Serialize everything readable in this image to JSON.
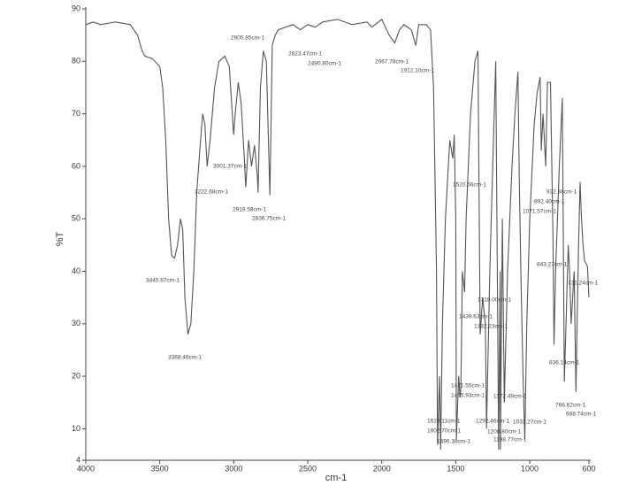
{
  "chart_data": {
    "type": "line",
    "xlabel": "cm-1",
    "ylabel": "%T",
    "xlim": [
      4000,
      600
    ],
    "xticks": [
      4000,
      3500,
      3000,
      2500,
      2000,
      1500,
      1000,
      600
    ],
    "ylim": [
      4,
      90
    ],
    "yticks": [
      4,
      10,
      20,
      30,
      40,
      50,
      60,
      70,
      80,
      90
    ],
    "color": "#555555",
    "x": [
      4000,
      3950,
      3900,
      3800,
      3700,
      3650,
      3620,
      3600,
      3550,
      3500,
      3480,
      3460,
      3440,
      3420,
      3400,
      3380,
      3360,
      3345,
      3330,
      3310,
      3290,
      3270,
      3250,
      3230,
      3210,
      3195,
      3180,
      3160,
      3130,
      3100,
      3060,
      3030,
      3001,
      2990,
      2970,
      2950,
      2930,
      2919,
      2900,
      2880,
      2860,
      2840,
      2836,
      2820,
      2800,
      2780,
      2756,
      2740,
      2720,
      2700,
      2600,
      2550,
      2500,
      2450,
      2400,
      2300,
      2200,
      2100,
      2067,
      2000,
      1950,
      1912,
      1880,
      1850,
      1800,
      1770,
      1750,
      1700,
      1670,
      1650,
      1630,
      1623,
      1610,
      1602,
      1590,
      1570,
      1550,
      1540,
      1520,
      1510,
      1500,
      1496,
      1480,
      1471,
      1465,
      1455,
      1440,
      1430,
      1400,
      1370,
      1350,
      1335,
      1332,
      1318,
      1300,
      1292,
      1270,
      1250,
      1230,
      1210,
      1200,
      1198,
      1185,
      1172,
      1150,
      1120,
      1100,
      1080,
      1071,
      1060,
      1045,
      1033,
      1020,
      1000,
      970,
      950,
      930,
      922,
      910,
      892,
      880,
      860,
      843,
      836,
      825,
      800,
      780,
      766,
      755,
      740,
      731,
      720,
      700,
      688,
      680,
      670,
      660,
      650,
      640,
      630,
      610,
      600
    ],
    "values": [
      87,
      87.5,
      87,
      87.5,
      87,
      85,
      82,
      81,
      80.5,
      79,
      75,
      65,
      50,
      43,
      42.5,
      45,
      50,
      48,
      35,
      28,
      30,
      40,
      55,
      63,
      70,
      68,
      60,
      65,
      75,
      80,
      81,
      79,
      66,
      70,
      76,
      72,
      62,
      56,
      65,
      60,
      64,
      58,
      55,
      75,
      82,
      80,
      54.5,
      83,
      85,
      86,
      87,
      86,
      87,
      86.5,
      87.5,
      88,
      87,
      87.5,
      86.5,
      88,
      85,
      83.5,
      86,
      87,
      86,
      83,
      87,
      87,
      86,
      75,
      40,
      7,
      20,
      6,
      30,
      50,
      60,
      65,
      61.5,
      66,
      50,
      8,
      20,
      16,
      18,
      40,
      36,
      50,
      70,
      80,
      82,
      28,
      29,
      35,
      30,
      10,
      40,
      60,
      80,
      6,
      40,
      6,
      50,
      15,
      40,
      60,
      70,
      78,
      58,
      40,
      20,
      8,
      30,
      50,
      68,
      74,
      77,
      63,
      70,
      60,
      76,
      76,
      47,
      26,
      40,
      60,
      73,
      19,
      30,
      45,
      40,
      30,
      40,
      17,
      30,
      45,
      57,
      50,
      45,
      42,
      41,
      35
    ],
    "annotations": [
      "2905.85cm-1",
      "2623.47cm-1",
      "2490.80cm-1",
      "2067.78cm-1",
      "1912.10cm-1",
      "3001.37cm-1",
      "3222.68cm-1",
      "2919.58cm-1",
      "2836.75cm-1",
      "3445.67cm-1",
      "3368.46cm-1",
      "1520.56cm-1",
      "922.88cm-1",
      "892.40cm-1",
      "1071.57cm-1",
      "843.27cm-1",
      "731.24cm-1",
      "1318.00cm-1",
      "1439.63cm-1",
      "1332.23cm-1",
      "836.14cm-1",
      "1471.55cm-1",
      "1465.93cm-1",
      "1172.49cm-1",
      "766.62cm-1",
      "688.74cm-1",
      "1623.11cm-1",
      "1292.46cm-1",
      "1033.27cm-1",
      "1602.70cm-1",
      "1208.80cm-1",
      "1496.38cm-1",
      "1198.77cm-1"
    ]
  }
}
